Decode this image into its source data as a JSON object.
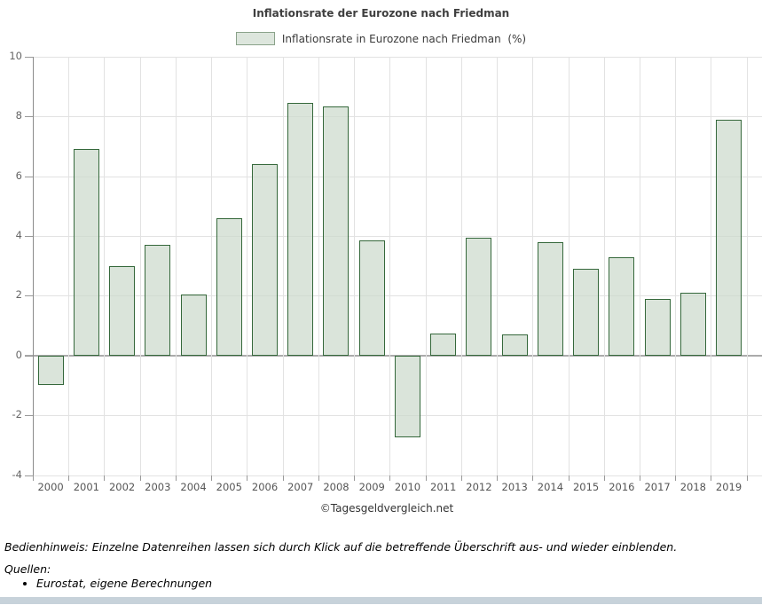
{
  "page": {
    "title": "Inflationsrate der Eurozone nach Friedman",
    "legend_label": "Inflationsrate in Eurozone nach Friedman  (%)",
    "watermark": "©Tagesgeldvergleich.net",
    "footer": {
      "hint": "Bedienhinweis: Einzelne Datenreihen lassen sich durch Klick auf die betreffende Überschrift aus- und wieder einblenden.",
      "sources_label": "Quellen:",
      "sources": [
        "Eurostat, eigene Berechnungen"
      ]
    }
  },
  "chart_data": {
    "type": "bar",
    "title": "Inflationsrate der Eurozone nach Friedman",
    "legend": [
      "Inflationsrate in Eurozone nach Friedman (%)"
    ],
    "legend_position": "top",
    "categories": [
      "2000",
      "2001",
      "2002",
      "2003",
      "2004",
      "2005",
      "2006",
      "2007",
      "2008",
      "2009",
      "2010",
      "2011",
      "2012",
      "2013",
      "2014",
      "2015",
      "2016",
      "2017",
      "2018",
      "2019"
    ],
    "values": [
      -1.0,
      6.9,
      3.0,
      3.7,
      2.05,
      4.6,
      6.4,
      8.45,
      8.35,
      3.85,
      -2.75,
      0.75,
      3.95,
      0.7,
      3.8,
      2.9,
      3.3,
      1.9,
      2.1,
      7.9
    ],
    "ylabel": "",
    "xlabel": "",
    "ylim": [
      -4,
      10
    ],
    "yticks": [
      10,
      8,
      6,
      4,
      2,
      0,
      -2,
      -4
    ],
    "grid": true,
    "colors": {
      "bar_fill": "#ccdacc",
      "bar_fill_alpha": 0.72,
      "bar_border": "#35683b",
      "grid_line": "#e2e2e2",
      "zero_line": "#ababab",
      "axis_line": "#8c8c8c",
      "tick": "#999999",
      "legend_swatch_fill": "#dde6dd",
      "legend_swatch_border": "#8aa28a",
      "bottom_bar": "#c7d2da"
    }
  }
}
